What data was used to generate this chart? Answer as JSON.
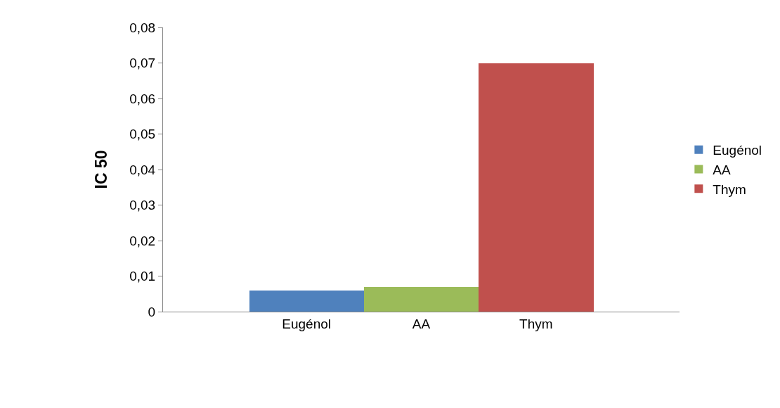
{
  "chart_data": {
    "type": "bar",
    "ylabel": "IC 50",
    "categories": [
      "Eugénol",
      "AA",
      "Thym"
    ],
    "series": [
      {
        "name": "Eugénol",
        "color": "#4f81bd",
        "values": [
          0.006,
          null,
          null
        ]
      },
      {
        "name": "AA",
        "color": "#9bbb59",
        "values": [
          null,
          0.007,
          null
        ]
      },
      {
        "name": "Thym",
        "color": "#c0504d",
        "values": [
          null,
          null,
          0.07
        ]
      }
    ],
    "ylim": [
      0,
      0.08
    ],
    "yticks": [
      0,
      {
        "value": 0.01,
        "label": "0,01"
      },
      {
        "value": 0.02,
        "label": "0,02"
      },
      {
        "value": 0.03,
        "label": "0,03"
      },
      {
        "value": 0.04,
        "label": "0,04"
      },
      {
        "value": 0.05,
        "label": "0,05"
      },
      {
        "value": 0.06,
        "label": "0,06"
      },
      {
        "value": 0.07,
        "label": "0,07"
      },
      {
        "value": 0.08,
        "label": "0,08"
      }
    ],
    "grid": false,
    "legend": "right"
  }
}
